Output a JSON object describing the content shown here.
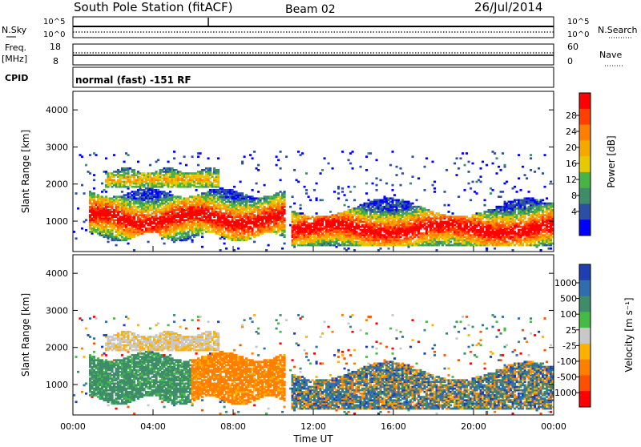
{
  "header": {
    "title": "South Pole Station (fitACF)",
    "beam": "Beam 02",
    "date": "26/Jul/2014"
  },
  "strips": {
    "nsky_label": "N.Sky",
    "nsearch_label": "N.Search",
    "nsky_ticks": [
      "10^5",
      "10^0"
    ],
    "nsearch_ticks": [
      "10^5",
      "10^0"
    ],
    "freq_label": "Freq.",
    "freq_unit": "[MHz]",
    "freq_ticks": [
      "18",
      "8"
    ],
    "nave_label": "Nave",
    "nave_ticks": [
      "60",
      "0"
    ],
    "cpid_label": "CPID",
    "cpid_value": "normal (fast) -151 RF"
  },
  "axes": {
    "ylabel": "Slant Range [km]",
    "xlabel": "Time UT"
  },
  "colors": {
    "power": [
      "#0000ff",
      "#2b4fa5",
      "#3f8c6a",
      "#46b545",
      "#e8c800",
      "#f5a800",
      "#ff7f00",
      "#ff4000",
      "#ff0000"
    ],
    "velocity": [
      "#ff0000",
      "#ff5000",
      "#ff7f00",
      "#ffb000",
      "#c8c8c8",
      "#44bb44",
      "#3f8c6a",
      "#2f6eae",
      "#1f3fb0"
    ]
  },
  "chart_data": [
    {
      "type": "heatmap",
      "name": "Power",
      "ylabel": "Slant Range [km]",
      "x_range": [
        "00:00",
        "24:00"
      ],
      "x_ticks": [
        "00:00",
        "04:00",
        "08:00",
        "12:00",
        "16:00",
        "20:00",
        "00:00"
      ],
      "ylim": [
        180,
        4500
      ],
      "y_ticks": [
        1000,
        2000,
        3000,
        4000
      ],
      "colorbar": {
        "label": "Power [dB]",
        "ticks": [
          "28",
          "24",
          "20",
          "16",
          "12",
          "8",
          "4"
        ],
        "range": [
          0,
          30
        ]
      },
      "regions": [
        {
          "t": [
            1.0,
            10.5
          ],
          "range_km": [
            700,
            1700
          ],
          "level_db": "high"
        },
        {
          "t": [
            1.5,
            7.0
          ],
          "range_km": [
            1900,
            2400
          ],
          "level_db": "medium"
        },
        {
          "t": [
            10.8,
            23.9
          ],
          "range_km": [
            300,
            1500
          ],
          "level_db": "high"
        },
        {
          "t": [
            0.0,
            24.0
          ],
          "range_km": [
            250,
            2800
          ],
          "level_db": "low"
        }
      ]
    },
    {
      "type": "heatmap",
      "name": "Velocity",
      "ylabel": "Slant Range [km]",
      "xlabel": "Time UT",
      "x_range": [
        "00:00",
        "24:00"
      ],
      "x_ticks": [
        "00:00",
        "04:00",
        "08:00",
        "12:00",
        "16:00",
        "20:00",
        "00:00"
      ],
      "ylim": [
        180,
        4500
      ],
      "y_ticks": [
        1000,
        2000,
        3000,
        4000
      ],
      "colorbar": {
        "label": "Velocity [m s⁻¹]",
        "ticks": [
          "1000",
          "500",
          "100",
          "25",
          "-25",
          "-100",
          "-500",
          "-1000"
        ],
        "range": [
          -1200,
          1200
        ]
      },
      "regions": [
        {
          "t": [
            0.5,
            5.5
          ],
          "range_km": [
            500,
            1800
          ],
          "velocity": "toward (green)"
        },
        {
          "t": [
            5.8,
            10.5
          ],
          "range_km": [
            700,
            1900
          ],
          "velocity": "away (orange)"
        },
        {
          "t": [
            2.5,
            6.0
          ],
          "range_km": [
            1900,
            2300
          ],
          "velocity": "low (grey/yellow)"
        },
        {
          "t": [
            10.8,
            23.9
          ],
          "range_km": [
            300,
            1500
          ],
          "velocity": "mixed"
        }
      ]
    }
  ]
}
